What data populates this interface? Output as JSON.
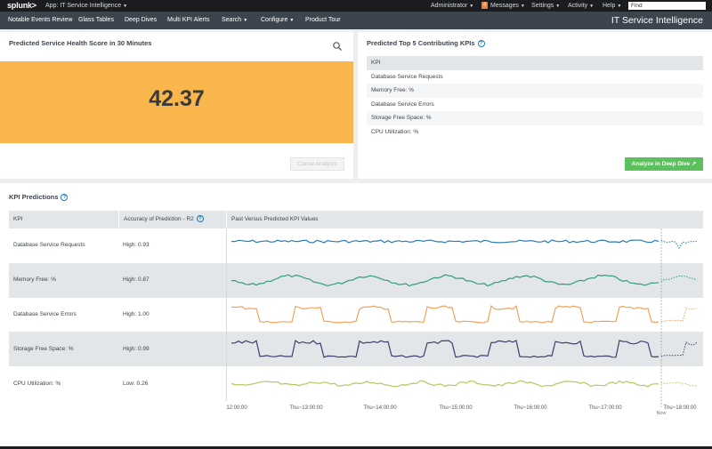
{
  "topbar": {
    "logo": "splunk>",
    "app": "App: IT Service Intelligence",
    "admin": "Administrator",
    "messages_count": "4",
    "messages": "Messages",
    "settings": "Settings",
    "activity": "Activity",
    "help": "Help",
    "find_placeholder": "Find"
  },
  "nav": {
    "items": [
      "Notable Events Review",
      "Glass Tables",
      "Deep Dives",
      "Multi KPI Alerts",
      "Search",
      "Configure",
      "Product Tour"
    ],
    "app_title": "IT Service Intelligence"
  },
  "health_panel": {
    "title": "Predicted Service Health Score in 30 Minutes",
    "score": "42.37",
    "cause_button": "Cause Analysis",
    "score_color": "#f8b64c"
  },
  "top_kpis": {
    "title": "Predicted Top 5 Contributing KPIs",
    "header": "KPI",
    "items": [
      "Database Service Requests",
      "Memory Free: %",
      "Database Service Errors",
      "Storage Free Space: %",
      "CPU Utilization: %"
    ],
    "deep_dive_button": "Analyze in Deep Dive"
  },
  "kpi_predictions": {
    "title": "KPI Predictions",
    "columns": [
      "KPI",
      "Accuracy of Prediction - R2",
      "Past Versus Predicted KPI Values"
    ],
    "rows": [
      {
        "kpi": "Database Service Requests",
        "accuracy": "High: 0.93",
        "color": "#2b7bb0"
      },
      {
        "kpi": "Memory Free: %",
        "accuracy": "High: 0.87",
        "color": "#2e9c81"
      },
      {
        "kpi": "Database Service Errors",
        "accuracy": "High: 1.00",
        "color": "#f2a25c"
      },
      {
        "kpi": "Storage Free Space: %",
        "accuracy": "High: 0.99",
        "color": "#3a3f6e"
      },
      {
        "kpi": "CPU Utilization: %",
        "accuracy": "Low: 0.26",
        "color": "#b5c760"
      }
    ],
    "x_ticks": [
      "12:00:00",
      "Thu~13:00:00",
      "Thu~14:00:00",
      "Thu~15:00:00",
      "Thu~16:00:00",
      "Thu~17:00:00",
      "Thu~18:00:00"
    ],
    "now_label": "Now"
  }
}
